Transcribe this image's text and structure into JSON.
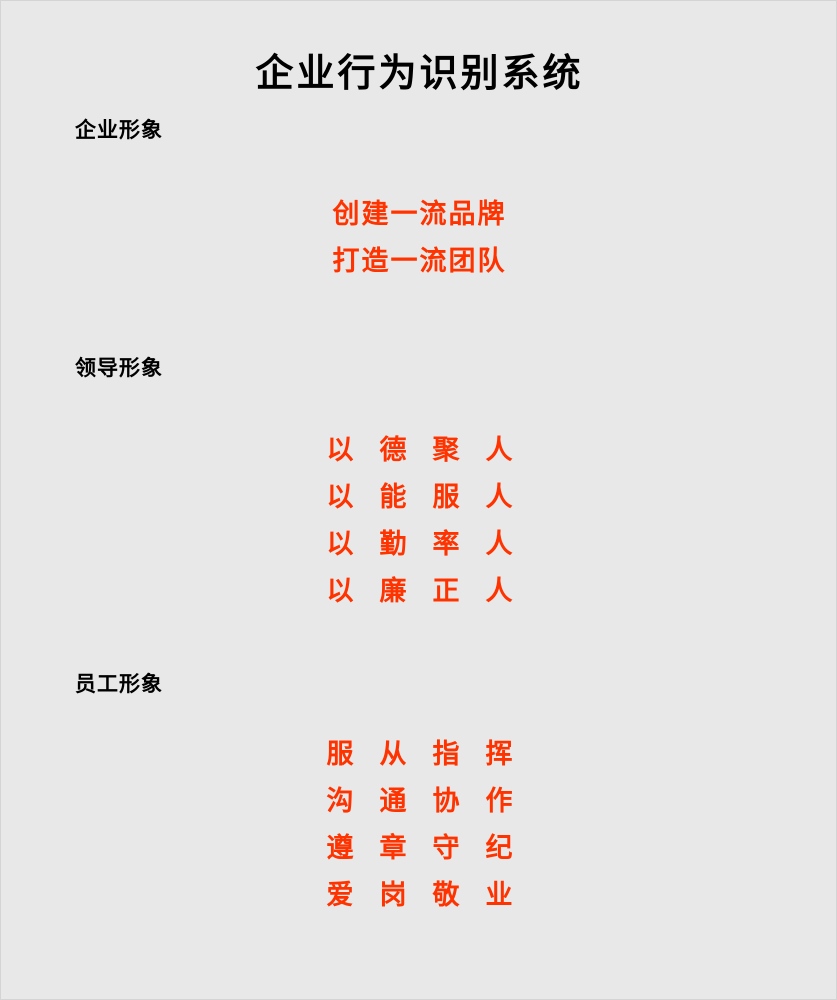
{
  "document": {
    "title": "企业行为识别系统",
    "sections": [
      {
        "heading": "企业形象",
        "slogans": [
          "创建一流品牌",
          "打造一流团队"
        ]
      },
      {
        "heading": "领导形象",
        "slogans": [
          "以德聚人",
          "以能服人",
          "以勤率人",
          "以廉正人"
        ]
      },
      {
        "heading": "员工形象",
        "slogans": [
          "服从指挥",
          "沟通协作",
          "遵章守纪",
          "爱岗敬业"
        ]
      }
    ],
    "colors": {
      "background": "#e8e8e8",
      "title": "#000000",
      "heading": "#000000",
      "slogan": "#ff3300"
    }
  }
}
